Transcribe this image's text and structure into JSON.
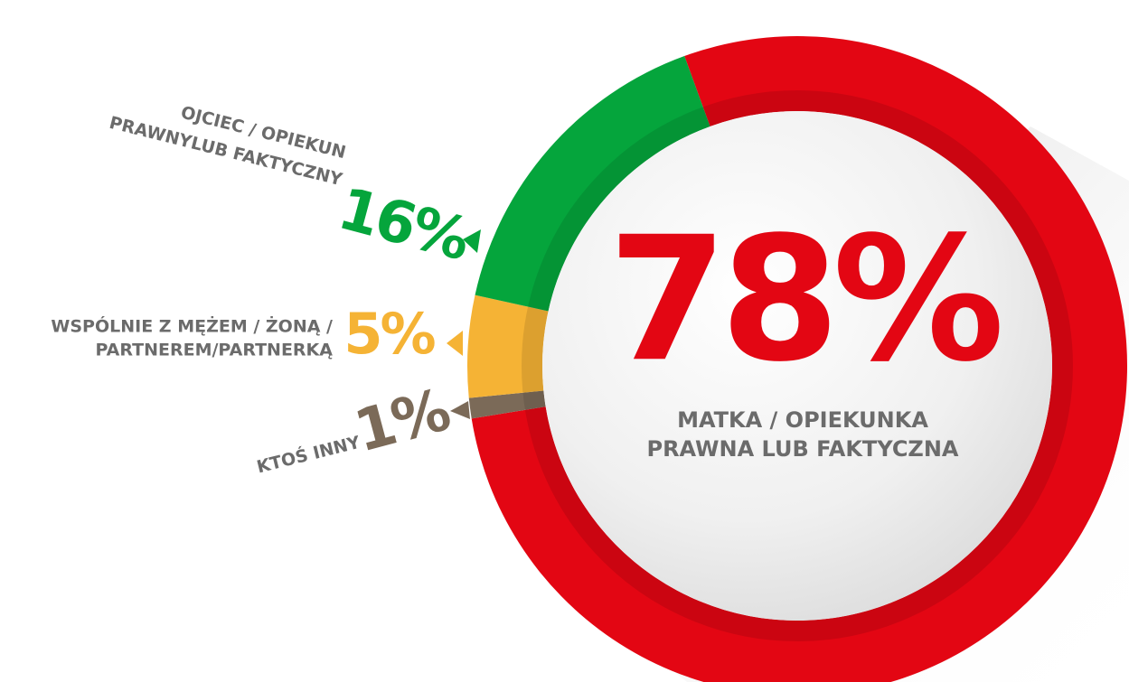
{
  "chart_data": {
    "type": "pie",
    "donut": true,
    "categories": [
      [
        "MATKA / OPIEKUNKA",
        "PRAWNA LUB FAKTYCZNA"
      ],
      [
        "KTOŚ INNY"
      ],
      [
        "WSPÓLNIE Z MĘŻEM / ŻONĄ /",
        "PARTNEREM/PARTNERKĄ"
      ],
      [
        "OJCIEC / OPIEKUN",
        "PRAWNYLUB FAKTYCZNY"
      ]
    ],
    "values": [
      78,
      1,
      5,
      16
    ],
    "value_labels": [
      "78%",
      "1%",
      "5%",
      "16%"
    ],
    "colors": [
      "#e30613",
      "#7b6a58",
      "#f5b335",
      "#05a53c"
    ]
  }
}
